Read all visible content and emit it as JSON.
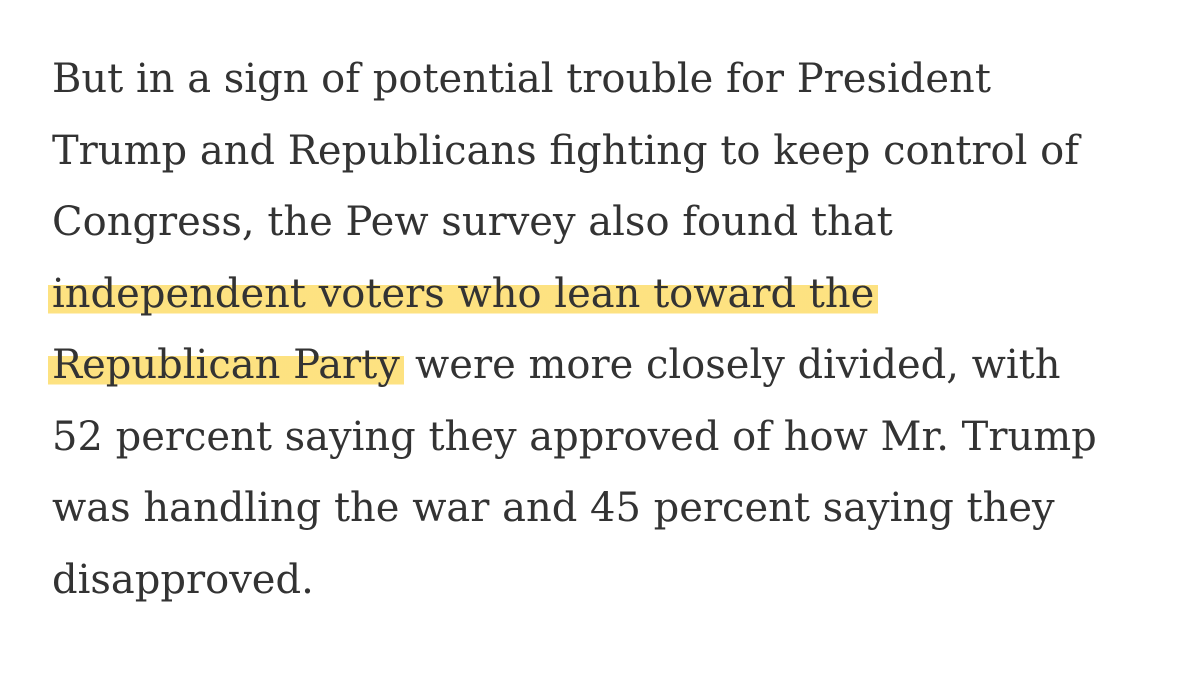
{
  "paragraph": {
    "lines": [
      [
        {
          "text": "But in a sign of potential trouble for President",
          "highlighted": false
        }
      ],
      [
        {
          "text": "Trump and Republicans fighting to keep control of",
          "highlighted": false
        }
      ],
      [
        {
          "text": "Congress, the Pew survey also found that",
          "highlighted": false
        }
      ],
      [
        {
          "text": "independent voters who lean toward the",
          "highlighted": true
        }
      ],
      [
        {
          "text": "Republican Party",
          "highlighted": true
        },
        {
          "text": "were more closely divided, with",
          "highlighted": false
        }
      ],
      [
        {
          "text": "52 percent saying they approved of how Mr. Trump",
          "highlighted": false
        }
      ],
      [
        {
          "text": "was handling the war and 45 percent saying they",
          "highlighted": false
        }
      ],
      [
        {
          "text": "disapproved.",
          "highlighted": false
        }
      ]
    ]
  }
}
